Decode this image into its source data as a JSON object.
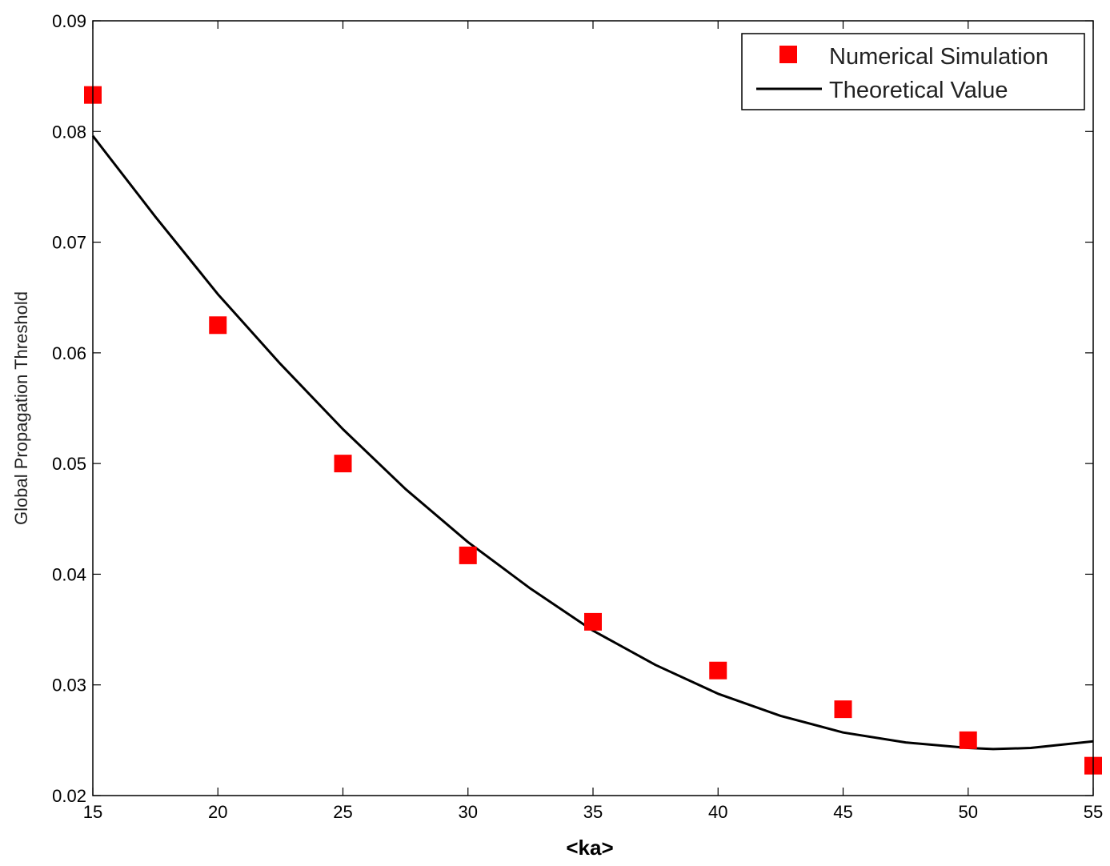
{
  "chart_data": {
    "type": "scatter",
    "title": "",
    "xlabel": "<ka>",
    "ylabel": "Global Propagation Threshold",
    "xlim": [
      15,
      55
    ],
    "ylim": [
      0.02,
      0.09
    ],
    "xticks": [
      15,
      20,
      25,
      30,
      35,
      40,
      45,
      50,
      55
    ],
    "yticks": [
      0.02,
      0.03,
      0.04,
      0.05,
      0.06,
      0.07,
      0.08,
      0.09
    ],
    "xtick_labels": [
      "15",
      "20",
      "25",
      "30",
      "35",
      "40",
      "45",
      "50",
      "55"
    ],
    "ytick_labels": [
      "0.02",
      "0.03",
      "0.04",
      "0.05",
      "0.06",
      "0.07",
      "0.08",
      "0.09"
    ],
    "grid": false,
    "legend_position": "top-right",
    "series": [
      {
        "name": "Numerical Simulation",
        "kind": "scatter",
        "marker": "square",
        "color": "#ff0000",
        "x": [
          15,
          20,
          25,
          30,
          35,
          40,
          45,
          50,
          55
        ],
        "y": [
          0.0833,
          0.0625,
          0.05,
          0.0417,
          0.0357,
          0.0313,
          0.0278,
          0.025,
          0.0227
        ]
      },
      {
        "name": "Theoretical Value",
        "kind": "line",
        "color": "#000000",
        "x": [
          15,
          17.5,
          20,
          22.5,
          25,
          27.5,
          30,
          32.5,
          35,
          37.5,
          40,
          42.5,
          45,
          47.5,
          50,
          51,
          52.5,
          55
        ],
        "y": [
          0.0796,
          0.0723,
          0.0653,
          0.059,
          0.0531,
          0.0477,
          0.0429,
          0.0387,
          0.0349,
          0.0318,
          0.0292,
          0.0272,
          0.0257,
          0.0248,
          0.0243,
          0.0242,
          0.0243,
          0.0249
        ]
      }
    ]
  }
}
